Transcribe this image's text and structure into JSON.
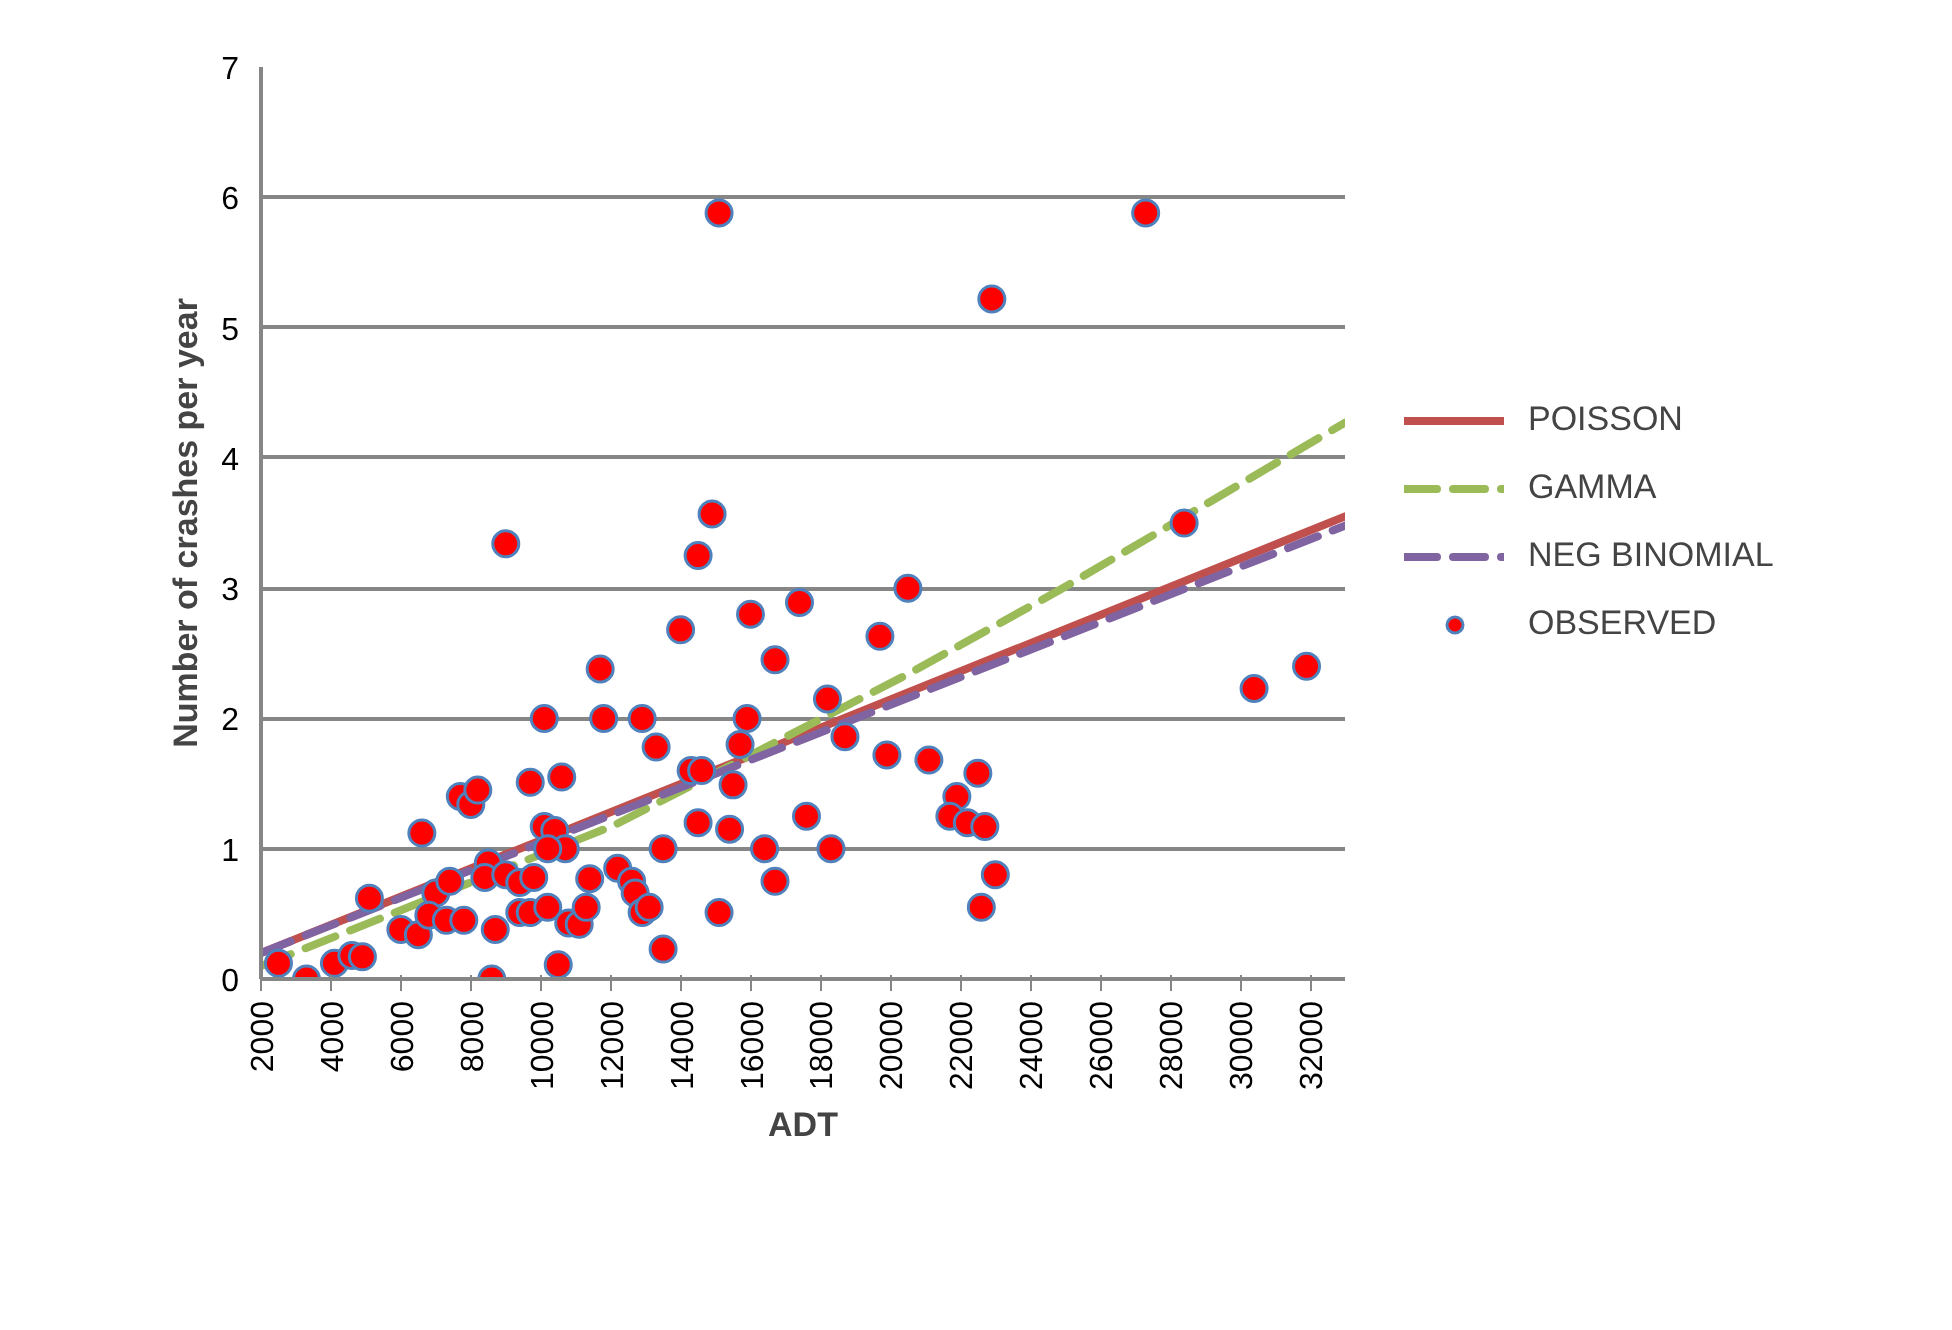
{
  "chart_data": {
    "type": "scatter",
    "xlabel": "ADT",
    "ylabel": "Number of crashes per year",
    "xlim": [
      2000,
      33000
    ],
    "ylim": [
      0,
      7
    ],
    "xticks": [
      2000,
      4000,
      6000,
      8000,
      10000,
      12000,
      14000,
      16000,
      18000,
      20000,
      22000,
      24000,
      26000,
      28000,
      30000,
      32000
    ],
    "yticks": [
      0,
      1,
      2,
      3,
      4,
      5,
      6,
      7
    ],
    "grid": "y",
    "legend": "right",
    "series": [
      {
        "name": "POISSON",
        "type": "line",
        "color": "#c0504d",
        "line_style": "solid",
        "marker": "none",
        "x": [
          2000,
          33000
        ],
        "values": [
          0.2,
          3.55
        ]
      },
      {
        "name": "GAMMA",
        "type": "line",
        "color": "#9bbb59",
        "line_style": "dashed",
        "marker": "none",
        "x": [
          2000,
          12100,
          20500,
          24800,
          33000
        ],
        "values": [
          0.1,
          1.18,
          2.34,
          2.98,
          4.27
        ]
      },
      {
        "name": "NEG BINOMIAL",
        "type": "line",
        "color": "#8064a2",
        "line_style": "dashed",
        "marker": "none",
        "x": [
          2000,
          33000
        ],
        "values": [
          0.2,
          3.48
        ]
      },
      {
        "name": "OBSERVED",
        "type": "scatter",
        "color": "#ff0000",
        "marker": "circle",
        "x": [
          2500,
          3300,
          4100,
          4600,
          4900,
          5100,
          6000,
          6500,
          6600,
          7000,
          6800,
          7300,
          7800,
          7400,
          7700,
          8000,
          8200,
          8500,
          8400,
          8700,
          8600,
          9000,
          9400,
          9800,
          9400,
          9700,
          9700,
          10600,
          10100,
          10100,
          11800,
          11700,
          10400,
          10700,
          10200,
          10200,
          10800,
          11100,
          11300,
          11400,
          10500,
          12200,
          12600,
          12700,
          12900,
          13100,
          9000,
          15100,
          14900,
          14500,
          14000,
          16000,
          17400,
          16700,
          19700,
          20500,
          18200,
          12900,
          15900,
          13300,
          15700,
          18700,
          19900,
          21100,
          22500,
          21900,
          21700,
          22200,
          22700,
          14300,
          14600,
          15500,
          14500,
          15400,
          17600,
          16400,
          18300,
          13500,
          16700,
          23000,
          22600,
          15100,
          13500,
          27300,
          22900,
          28400,
          30400,
          31900
        ],
        "values": [
          0.12,
          0,
          0.12,
          0.18,
          0.17,
          0.62,
          0.38,
          0.34,
          1.12,
          0.66,
          0.49,
          0.45,
          0.45,
          0.75,
          1.4,
          1.34,
          1.45,
          0.89,
          0.78,
          0.38,
          0,
          0.8,
          0.74,
          0.78,
          0.51,
          0.51,
          1.51,
          1.55,
          1.17,
          2.0,
          2.0,
          2.38,
          1.14,
          1.0,
          1.0,
          0.55,
          0.43,
          0.42,
          0.55,
          0.77,
          0.11,
          0.85,
          0.75,
          0.66,
          0.51,
          0.55,
          3.34,
          5.88,
          3.57,
          3.25,
          2.68,
          2.8,
          2.89,
          2.45,
          2.63,
          3.0,
          2.15,
          2.0,
          2.0,
          1.78,
          1.8,
          1.86,
          1.72,
          1.68,
          1.58,
          1.4,
          1.25,
          1.2,
          1.17,
          1.6,
          1.6,
          1.49,
          1.2,
          1.15,
          1.25,
          1.0,
          1.0,
          1.0,
          0.75,
          0.8,
          0.55,
          0.51,
          0.23,
          5.88,
          5.22,
          3.5,
          2.23,
          2.4
        ]
      }
    ]
  }
}
